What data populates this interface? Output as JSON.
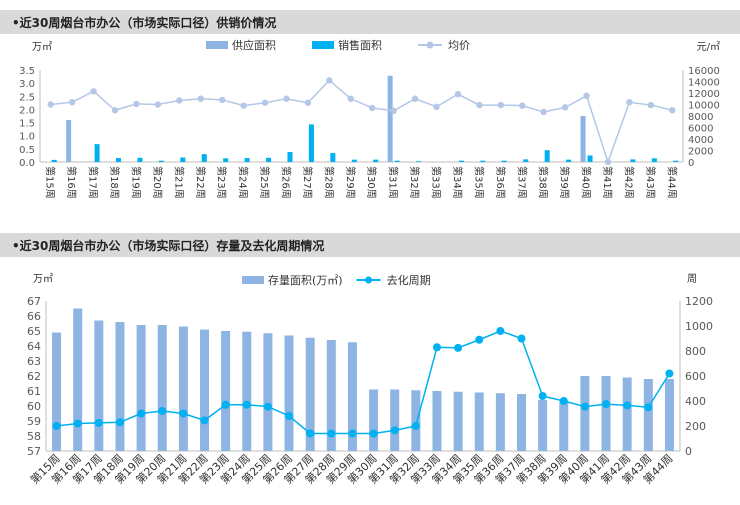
{
  "chart_data": [
    {
      "type": "bar",
      "title": "•近30周烟台市办公（市场实际口径）供销价情况",
      "left_unit": "万㎡",
      "right_unit": "元/㎡",
      "ylim": [
        0,
        3.5
      ],
      "y2lim": [
        0,
        16000
      ],
      "yticks": [
        "0.0",
        "0.5",
        "1.0",
        "1.5",
        "2.0",
        "2.5",
        "3.0",
        "3.5"
      ],
      "y2ticks": [
        "0",
        "2000",
        "4000",
        "6000",
        "8000",
        "10000",
        "12000",
        "14000",
        "16000"
      ],
      "categories": [
        "第15周",
        "第16周",
        "第17周",
        "第18周",
        "第19周",
        "第20周",
        "第21周",
        "第22周",
        "第23周",
        "第24周",
        "第25周",
        "第26周",
        "第27周",
        "第28周",
        "第29周",
        "第30周",
        "第31周",
        "第32周",
        "第33周",
        "第34周",
        "第35周",
        "第36周",
        "第37周",
        "第38周",
        "第39周",
        "第40周",
        "第41周",
        "第42周",
        "第43周",
        "第44周"
      ],
      "series": [
        {
          "name": "供应面积",
          "kind": "bar",
          "axis": "left",
          "color": "#8eb4e3",
          "values": [
            0,
            1.6,
            0,
            0,
            0,
            0,
            0,
            0,
            0,
            0,
            0,
            0,
            0,
            0,
            0,
            0,
            3.28,
            0,
            0,
            0,
            0,
            0,
            0,
            0,
            0,
            1.75,
            0,
            0,
            0,
            0
          ]
        },
        {
          "name": "销售面积",
          "kind": "bar",
          "axis": "left",
          "color": "#00b0f0",
          "values": [
            0.08,
            0,
            0.68,
            0.15,
            0.16,
            0.05,
            0.17,
            0.3,
            0.14,
            0.15,
            0.16,
            0.38,
            1.43,
            0.34,
            0.09,
            0.09,
            0.05,
            0.03,
            0,
            0.05,
            0.05,
            0.05,
            0.1,
            0.45,
            0.09,
            0.25,
            0,
            0.1,
            0.14,
            0.05
          ]
        },
        {
          "name": "均价",
          "kind": "line",
          "axis": "right",
          "color": "#b4c7e7",
          "values": [
            10000,
            10400,
            12300,
            9000,
            10100,
            10000,
            10700,
            11000,
            10800,
            9800,
            10300,
            11000,
            10300,
            14200,
            11000,
            9400,
            8900,
            11000,
            9600,
            11800,
            9900,
            9900,
            9800,
            8700,
            9500,
            11500,
            0,
            10400,
            9900,
            9000
          ]
        }
      ],
      "grid": false,
      "legend": "top-center"
    },
    {
      "type": "bar",
      "title": "•近30周烟台市办公（市场实际口径）存量及去化周期情况",
      "left_unit": "万㎡",
      "right_unit": "周",
      "ylim": [
        57,
        67
      ],
      "y2lim": [
        0,
        1200
      ],
      "yticks": [
        "57",
        "58",
        "59",
        "60",
        "61",
        "62",
        "63",
        "64",
        "65",
        "66",
        "67"
      ],
      "y2ticks": [
        "0",
        "200",
        "400",
        "600",
        "800",
        "1000",
        "1200"
      ],
      "categories": [
        "第15周",
        "第16周",
        "第17周",
        "第18周",
        "第19周",
        "第20周",
        "第21周",
        "第22周",
        "第23周",
        "第24周",
        "第25周",
        "第26周",
        "第27周",
        "第28周",
        "第29周",
        "第30周",
        "第31周",
        "第32周",
        "第33周",
        "第34周",
        "第35周",
        "第36周",
        "第37周",
        "第38周",
        "第39周",
        "第40周",
        "第41周",
        "第42周",
        "第43周",
        "第44周"
      ],
      "series": [
        {
          "name": "存量面积(万㎡)",
          "kind": "bar",
          "axis": "left",
          "color": "#8eb4e3",
          "values": [
            64.9,
            66.5,
            65.7,
            65.6,
            65.4,
            65.4,
            65.3,
            65.1,
            65.0,
            64.95,
            64.85,
            64.7,
            64.55,
            64.4,
            64.25,
            61.1,
            61.1,
            61.05,
            61.0,
            60.95,
            60.9,
            60.85,
            60.8,
            60.4,
            60.3,
            62.0,
            62.0,
            61.9,
            61.8,
            61.8
          ]
        },
        {
          "name": "去化周期",
          "kind": "line",
          "axis": "right",
          "color": "#00b0f0",
          "values": [
            200,
            220,
            225,
            230,
            300,
            320,
            300,
            245,
            370,
            370,
            355,
            280,
            140,
            140,
            140,
            140,
            165,
            200,
            830,
            825,
            890,
            960,
            900,
            440,
            400,
            355,
            375,
            365,
            350,
            620
          ]
        }
      ],
      "grid": false,
      "legend": "top-center"
    }
  ]
}
